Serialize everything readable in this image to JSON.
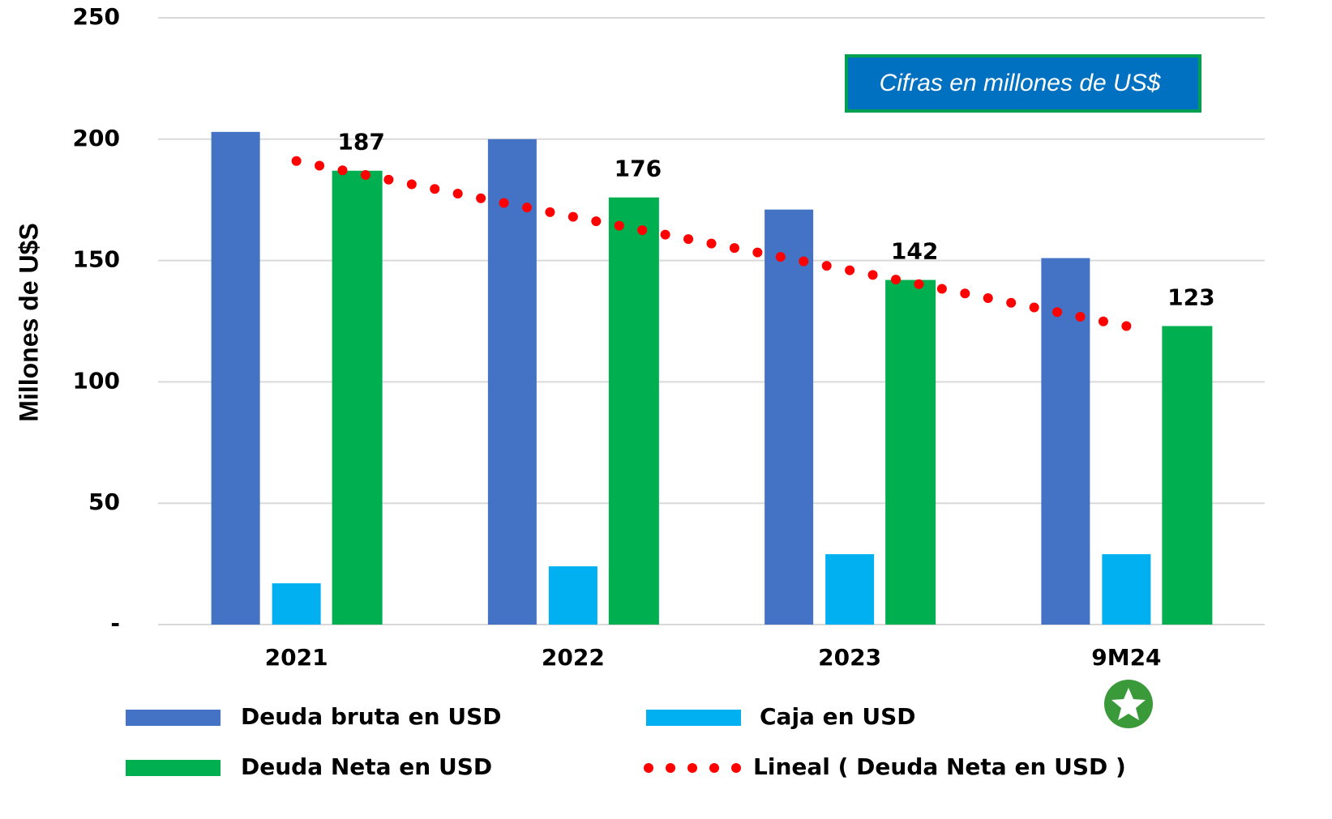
{
  "chart_data": {
    "type": "bar",
    "y_label": "Millones de U$S",
    "annotation": "Cifras en millones de US$",
    "categories": [
      "2021",
      "2022",
      "2023",
      "9M24"
    ],
    "series": [
      {
        "name": "Deuda bruta en USD",
        "color": "#4472c4",
        "values": [
          203,
          200,
          171,
          151
        ]
      },
      {
        "name": "Caja en USD",
        "color": "#00b0f0",
        "values": [
          17,
          24,
          29,
          29
        ]
      },
      {
        "name": "Deuda Neta en USD",
        "color": "#00b050",
        "values": [
          187,
          176,
          142,
          123
        ],
        "data_labels": true
      },
      {
        "name": "Lineal ( Deuda Neta en USD )",
        "type": "line",
        "color": "#ff0000",
        "values": [
          191,
          168,
          146,
          123
        ]
      }
    ],
    "ylim": [
      0,
      250
    ],
    "yticks": [
      {
        "value": 0,
        "label": "-"
      },
      50,
      100,
      150,
      200,
      250
    ],
    "grid": true
  }
}
